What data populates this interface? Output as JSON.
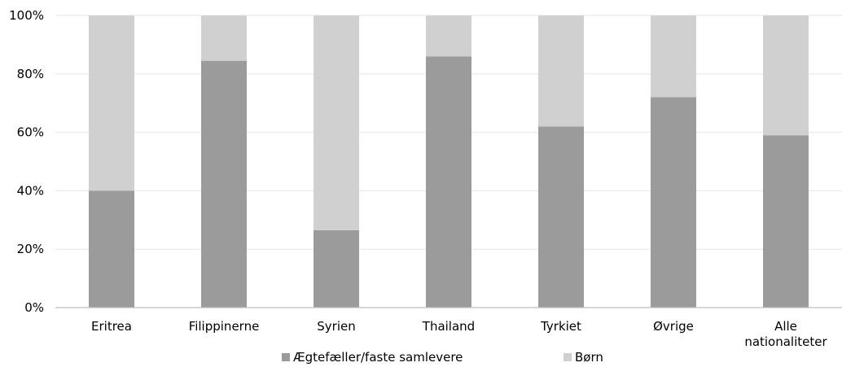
{
  "chart_data": {
    "type": "bar",
    "stacked": true,
    "percent": true,
    "categories": [
      [
        "Eritrea"
      ],
      [
        "Filippinerne"
      ],
      [
        "Syrien"
      ],
      [
        "Thailand"
      ],
      [
        "Tyrkiet"
      ],
      [
        "Øvrige"
      ],
      [
        "Alle",
        "nationaliteter"
      ]
    ],
    "series": [
      {
        "name": "Ægtefæller/faste samlevere",
        "color": "#9b9b9b",
        "values": [
          40,
          84.5,
          26.5,
          86,
          62,
          72,
          59
        ]
      },
      {
        "name": "Børn",
        "color": "#d0d0d0",
        "values": [
          60,
          15.5,
          73.5,
          14,
          38,
          28,
          41
        ]
      }
    ],
    "ylim": [
      0,
      100
    ],
    "y_ticks": [
      "0%",
      "20%",
      "40%",
      "60%",
      "80%",
      "100%"
    ],
    "grid": true,
    "legend": "bottom",
    "gridline_color": "#e6e6e6",
    "axis_color": "#bfbfbf"
  }
}
